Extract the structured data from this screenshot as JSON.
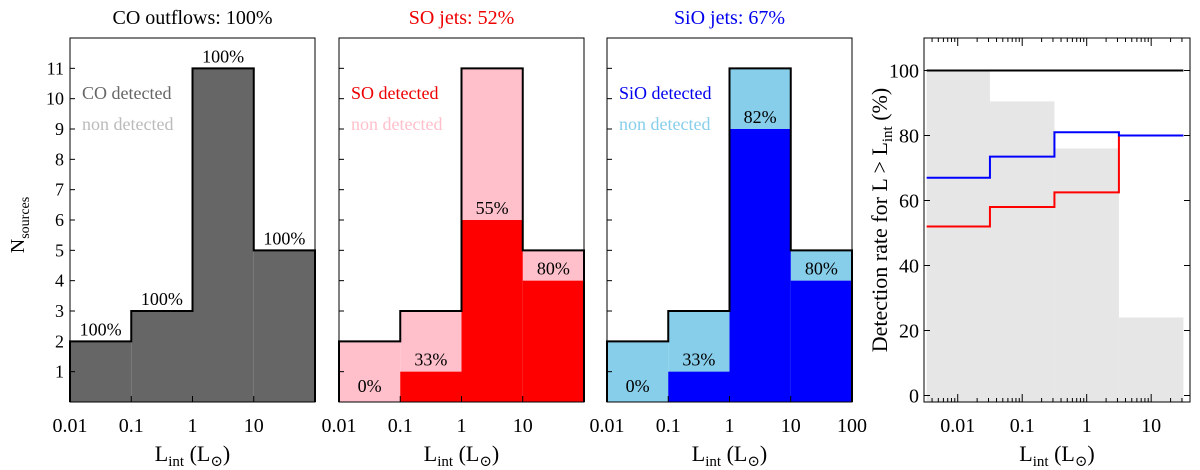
{
  "chart_data": [
    {
      "type": "bar",
      "title": "CO outflows: 100%",
      "title_color": "#000000",
      "bins": [
        "0.01-0.1",
        "0.1-1",
        "1-10",
        "10-100"
      ],
      "total": [
        2,
        3,
        11,
        5
      ],
      "detected": [
        2,
        3,
        11,
        5
      ],
      "labels": [
        "100%",
        "100%",
        "100%",
        "100%"
      ],
      "legend": [
        "CO detected",
        "non detected"
      ],
      "colors": {
        "total": "#ffffff",
        "detected": "#666666",
        "legend_detected": "#666666",
        "legend_non": "#bbbbbb"
      },
      "x_ticks": [
        "0.01",
        "0.1",
        "1",
        "10"
      ],
      "y_ticks": [
        "1",
        "2",
        "3",
        "4",
        "5",
        "6",
        "7",
        "8",
        "9",
        "10",
        "11"
      ],
      "ylim": [
        0,
        12
      ],
      "ylabel": "N",
      "ylabel_sub": "sources",
      "xlabel": "L",
      "xlabel_sub": "int",
      "xlabel_unit_open": "(L",
      "xlabel_unit_close": ")"
    },
    {
      "type": "bar",
      "title": "SO jets: 52%",
      "title_color": "#ee0000",
      "bins": [
        "0.01-0.1",
        "0.1-1",
        "1-10",
        "10-100"
      ],
      "total": [
        2,
        3,
        11,
        5
      ],
      "detected": [
        0,
        1,
        6,
        4
      ],
      "labels": [
        "0%",
        "33%",
        "55%",
        "80%"
      ],
      "legend": [
        "SO detected",
        "non detected"
      ],
      "colors": {
        "total": "#ffc0cb",
        "detected": "#ff0000",
        "legend_detected": "#ee0000",
        "legend_non": "#ffc0cb"
      },
      "x_ticks": [
        "0.01",
        "0.1",
        "1",
        "10"
      ],
      "ylim": [
        0,
        12
      ],
      "xlabel": "L",
      "xlabel_sub": "int",
      "xlabel_unit_open": "(L",
      "xlabel_unit_close": ")"
    },
    {
      "type": "bar",
      "title": "SiO jets: 67%",
      "title_color": "#0000ee",
      "bins": [
        "0.01-0.1",
        "0.1-1",
        "1-10",
        "10-100"
      ],
      "total": [
        2,
        3,
        11,
        5
      ],
      "detected": [
        0,
        1,
        9,
        4
      ],
      "labels": [
        "0%",
        "33%",
        "82%",
        "80%"
      ],
      "legend": [
        "SiO detected",
        "non detected"
      ],
      "colors": {
        "total": "#87ceeb",
        "detected": "#0000ff",
        "legend_detected": "#0000ee",
        "legend_non": "#87ceeb"
      },
      "x_ticks": [
        "0.01",
        "0.1",
        "1",
        "10",
        "100"
      ],
      "ylim": [
        0,
        12
      ],
      "xlabel": "L",
      "xlabel_sub": "int",
      "xlabel_unit_open": "(L",
      "xlabel_unit_close": ")"
    },
    {
      "type": "line",
      "x_log": true,
      "xlim": [
        0.003,
        40
      ],
      "ylim": [
        -2,
        110
      ],
      "ylabel_pre": "Detection rate for L > L",
      "ylabel_sub": "int",
      "ylabel_post": " (%)",
      "xlabel": "L",
      "xlabel_sub": "int",
      "xlabel_unit_open": "(L",
      "xlabel_unit_close": ")",
      "x_ticks": [
        {
          "v": 0.01,
          "label": "0.01"
        },
        {
          "v": 0.1,
          "label": "0.1"
        },
        {
          "v": 1,
          "label": "1"
        },
        {
          "v": 10,
          "label": "10"
        }
      ],
      "y_ticks": [
        {
          "v": 0,
          "label": "0"
        },
        {
          "v": 20,
          "label": "20"
        },
        {
          "v": 40,
          "label": "40"
        },
        {
          "v": 60,
          "label": "60"
        },
        {
          "v": 80,
          "label": "80"
        },
        {
          "v": 100,
          "label": "100"
        }
      ],
      "background_bars": {
        "color": "#e6e6e6",
        "edges": [
          0.0033,
          0.0316,
          0.316,
          3.16,
          31.6
        ],
        "values": [
          100,
          90.5,
          76,
          24
        ]
      },
      "series": [
        {
          "name": "CO",
          "color": "#000000",
          "edges": [
            0.0033,
            0.0316,
            0.316,
            3.16,
            31.6
          ],
          "values": [
            100,
            100,
            100,
            100
          ]
        },
        {
          "name": "SO",
          "color": "#ff0000",
          "edges": [
            0.0033,
            0.0316,
            0.316,
            3.16,
            31.6
          ],
          "values": [
            52,
            58,
            62.5,
            80
          ]
        },
        {
          "name": "SiO",
          "color": "#0000ff",
          "edges": [
            0.0033,
            0.0316,
            0.316,
            3.16,
            31.6
          ],
          "values": [
            67,
            73.5,
            81,
            80
          ]
        }
      ]
    }
  ]
}
